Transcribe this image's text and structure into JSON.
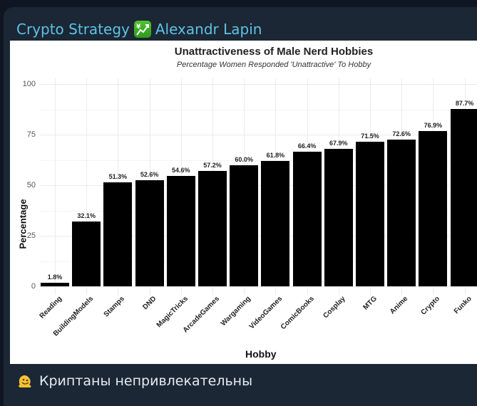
{
  "header": {
    "channel_name": "Crypto Strategy",
    "emoji": "chart-increasing-with-yen-icon",
    "author_name": "Alexandr Lapin",
    "colors": {
      "title_text": "#5fc2e4",
      "card_bg": "#1b2735",
      "page_bg": "#0f1621"
    }
  },
  "caption": {
    "emoji": "melting-face-icon",
    "text": "Криптаны непривлекательны"
  },
  "chart_data": {
    "type": "bar",
    "title": "Unattractiveness of Male Nerd Hobbies",
    "subtitle": "Percentage Women Responded 'Unattractive' To Hobby",
    "xlabel": "Hobby",
    "ylabel": "Percentage",
    "ylim": [
      0,
      100
    ],
    "yticks": [
      0,
      25,
      50,
      75,
      100
    ],
    "grid": true,
    "categories": [
      "Reading",
      "BuildingModels",
      "Stamps",
      "DND",
      "MagicTricks",
      "ArcadeGames",
      "Wargaming",
      "VideoGames",
      "ComicBooks",
      "Cosplay",
      "MTG",
      "Anime",
      "Crypto",
      "Funko"
    ],
    "values": [
      1.8,
      32.1,
      51.3,
      52.6,
      54.6,
      57.2,
      60.0,
      61.8,
      66.4,
      67.9,
      71.5,
      72.6,
      76.9,
      87.7
    ],
    "labels": [
      "1.8%",
      "32.1%",
      "51.3%",
      "52.6%",
      "54.6%",
      "57.2%",
      "60.0%",
      "61.8%",
      "66.4%",
      "67.9%",
      "71.5%",
      "72.6%",
      "76.9%",
      "87.7%"
    ],
    "bar_color": "#000000"
  }
}
